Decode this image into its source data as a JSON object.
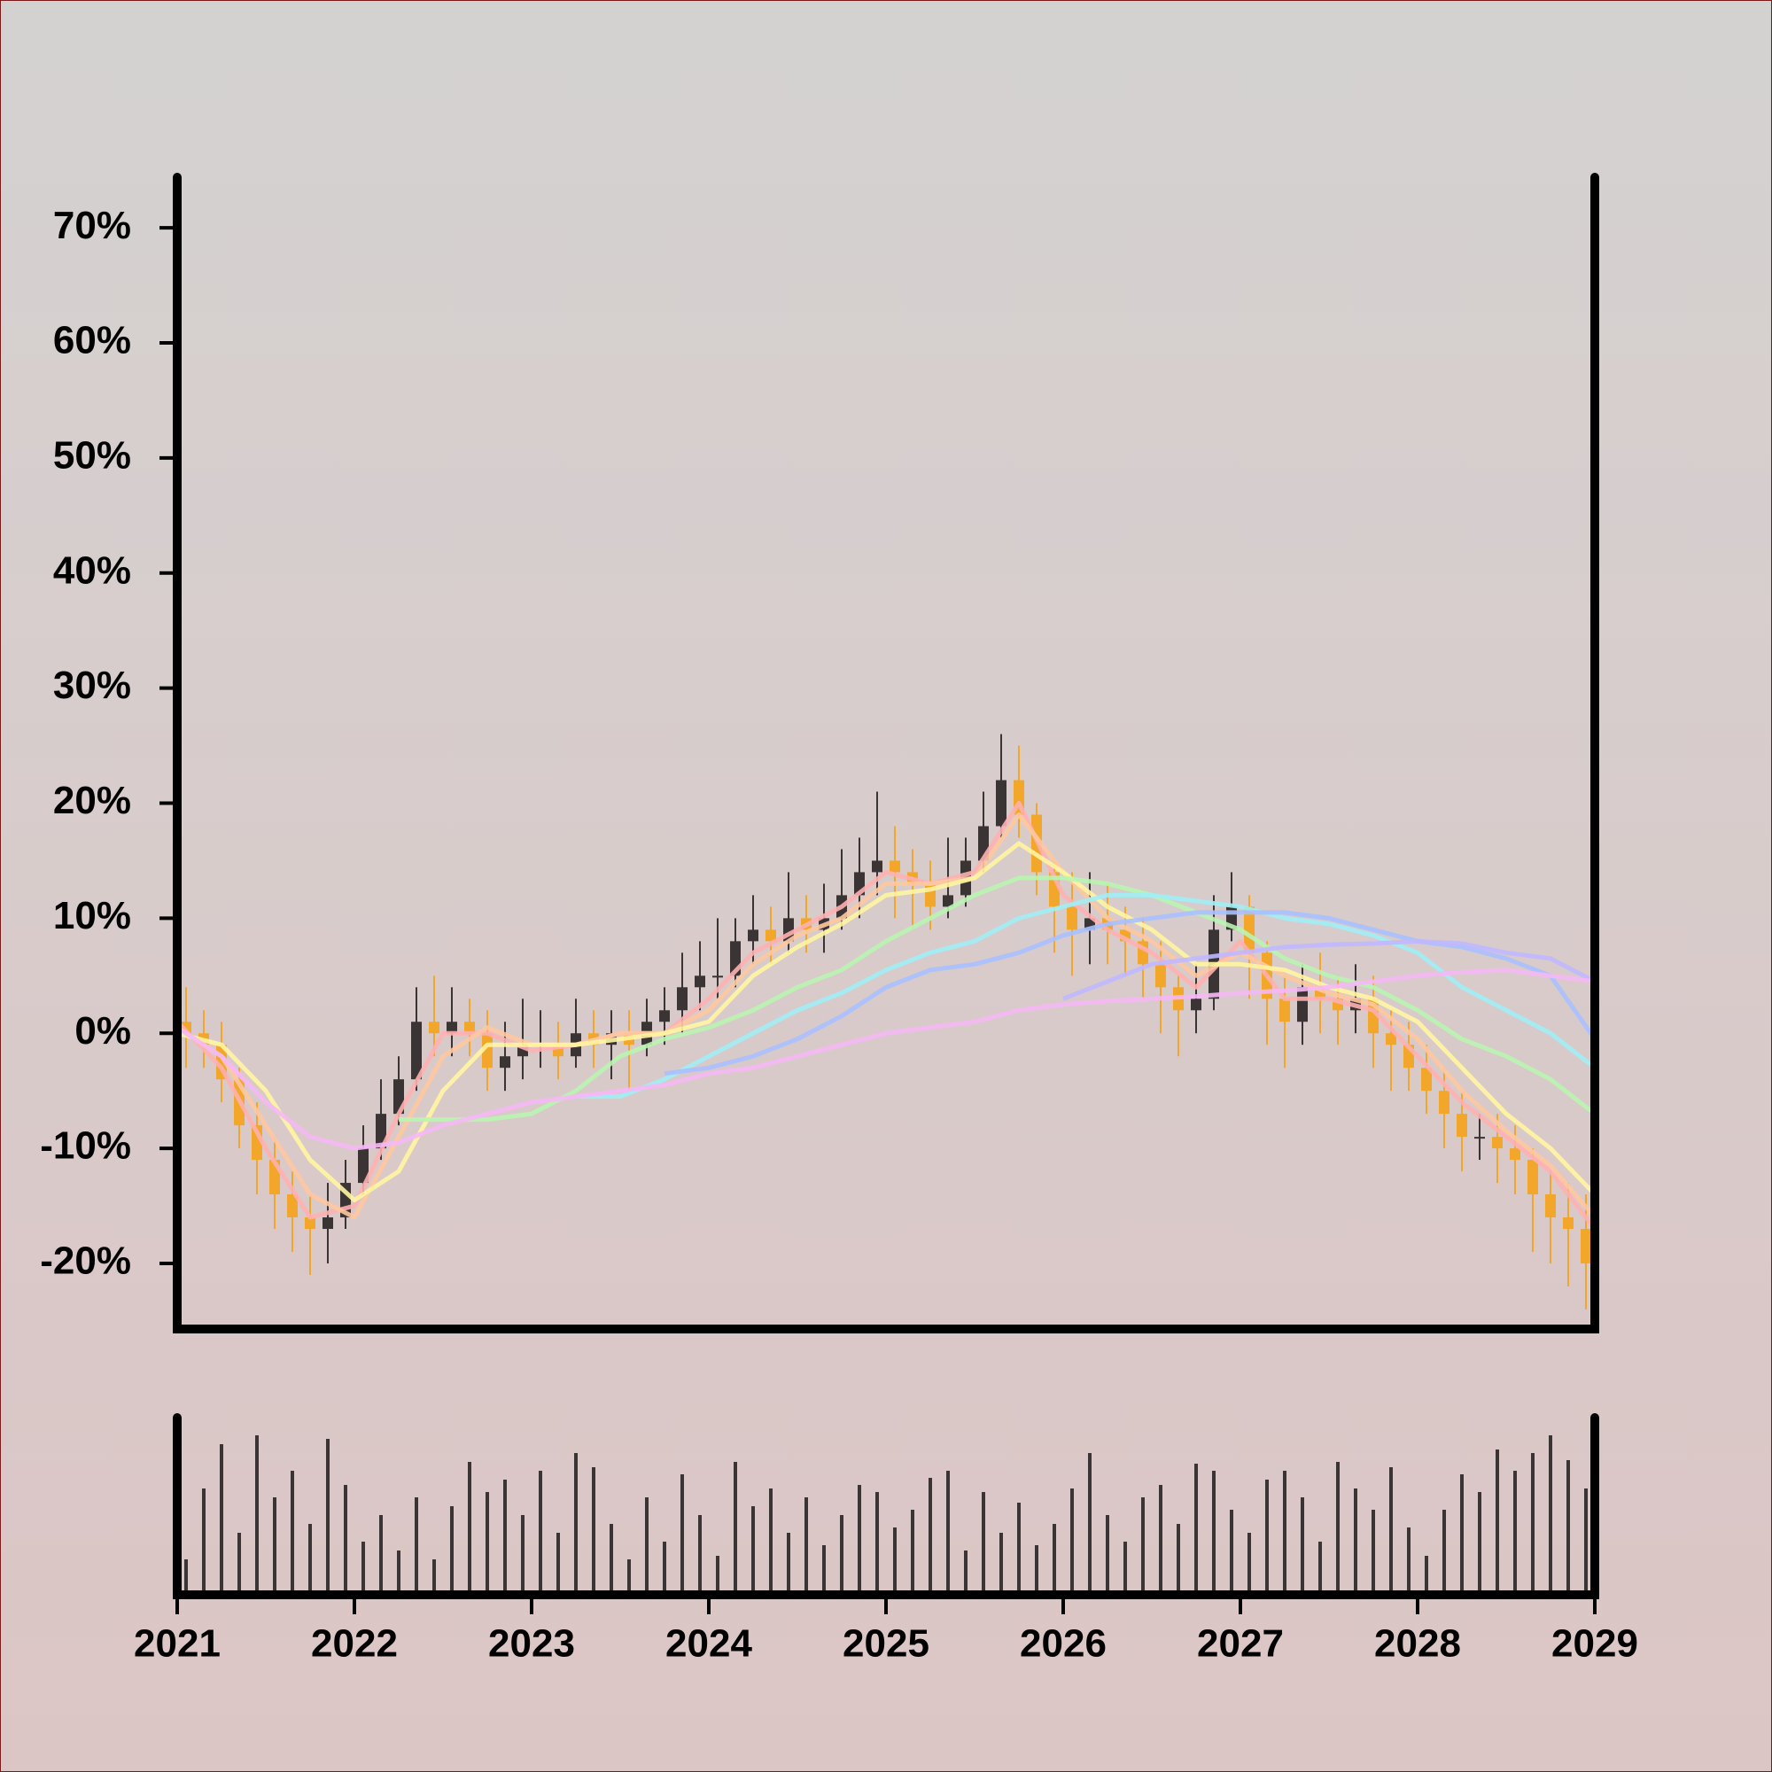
{
  "chart_data": {
    "type": "candlestick",
    "xlim": [
      2021,
      2029
    ],
    "xticks": [
      2021,
      2022,
      2023,
      2024,
      2025,
      2026,
      2027,
      2028,
      2029
    ],
    "ylim": [
      -25.7,
      74.4
    ],
    "yticks": [
      {
        "value": -20,
        "label": "-20%"
      },
      {
        "value": -10,
        "label": "-10%"
      },
      {
        "value": 0,
        "label": "0%"
      },
      {
        "value": 10,
        "label": "10%"
      },
      {
        "value": 20,
        "label": "20%"
      },
      {
        "value": 30,
        "label": "30%"
      },
      {
        "value": 40,
        "label": "40%"
      },
      {
        "value": 50,
        "label": "50%"
      },
      {
        "value": 60,
        "label": "60%"
      },
      {
        "value": 70,
        "label": "70%"
      }
    ],
    "up_color": "#3a3434",
    "down_color": "#f2a62a",
    "volume_color": "#3a3434",
    "volume_lim": [
      0,
      100
    ],
    "candles": {
      "x": [
        2021.05,
        2021.15,
        2021.25,
        2021.35,
        2021.45,
        2021.55,
        2021.65,
        2021.75,
        2021.85,
        2021.95,
        2022.05,
        2022.15,
        2022.25,
        2022.35,
        2022.45,
        2022.55,
        2022.65,
        2022.75,
        2022.85,
        2022.95,
        2023.05,
        2023.15,
        2023.25,
        2023.35,
        2023.45,
        2023.55,
        2023.65,
        2023.75,
        2023.85,
        2023.95,
        2024.05,
        2024.15,
        2024.25,
        2024.35,
        2024.45,
        2024.55,
        2024.65,
        2024.75,
        2024.85,
        2024.95,
        2025.05,
        2025.15,
        2025.25,
        2025.35,
        2025.45,
        2025.55,
        2025.65,
        2025.75,
        2025.85,
        2025.95,
        2026.05,
        2026.15,
        2026.25,
        2026.35,
        2026.45,
        2026.55,
        2026.65,
        2026.75,
        2026.85,
        2026.95,
        2027.05,
        2027.15,
        2027.25,
        2027.35,
        2027.45,
        2027.55,
        2027.65,
        2027.75,
        2027.85,
        2027.95,
        2028.05,
        2028.15,
        2028.25,
        2028.35,
        2028.45,
        2028.55,
        2028.65,
        2028.75,
        2028.85,
        2028.95
      ],
      "open": [
        1,
        0,
        -1,
        -4,
        -8,
        -11,
        -14,
        -16,
        -17,
        -16,
        -13,
        -10,
        -7,
        -4,
        1,
        0,
        1,
        0,
        -3,
        -2,
        -1,
        -1,
        -2,
        0,
        -1,
        0,
        -1,
        1,
        2,
        4,
        5,
        5,
        8,
        9,
        8,
        10,
        9,
        10,
        12,
        14,
        15,
        14,
        13,
        11,
        12,
        15,
        18,
        22,
        19,
        14,
        11,
        9,
        10,
        9,
        8,
        6,
        4,
        2,
        3,
        9,
        11,
        7,
        3,
        1,
        4,
        3,
        2,
        3,
        0,
        -1,
        -3,
        -5,
        -7,
        -9,
        -9,
        -10,
        -11,
        -14,
        -16,
        -17
      ],
      "high": [
        4,
        2,
        1,
        -3,
        -6,
        -9,
        -12,
        -14,
        -13,
        -11,
        -8,
        -4,
        -2,
        4,
        5,
        4,
        3,
        2,
        1,
        3,
        2,
        1,
        3,
        2,
        2,
        2,
        3,
        4,
        7,
        8,
        10,
        10,
        12,
        11,
        14,
        12,
        13,
        16,
        17,
        21,
        18,
        16,
        15,
        17,
        17,
        21,
        26,
        25,
        20,
        15,
        14,
        14,
        13,
        11,
        10,
        8,
        5,
        6,
        12,
        14,
        12,
        8,
        5,
        6,
        7,
        5,
        6,
        5,
        2,
        1,
        -1,
        -3,
        -5,
        -7,
        -7,
        -8,
        -10,
        -12,
        -13,
        -14
      ],
      "low": [
        -3,
        -3,
        -6,
        -10,
        -14,
        -17,
        -19,
        -21,
        -20,
        -17,
        -14,
        -11,
        -8,
        -5,
        -2,
        -2,
        -2,
        -5,
        -5,
        -4,
        -3,
        -4,
        -3,
        -3,
        -4,
        -5,
        -2,
        -1,
        0,
        2,
        3,
        4,
        6,
        6,
        7,
        7,
        7,
        9,
        10,
        12,
        10,
        9,
        9,
        10,
        11,
        14,
        17,
        17,
        12,
        7,
        5,
        6,
        6,
        5,
        3,
        0,
        -2,
        0,
        2,
        8,
        3,
        -1,
        -3,
        -1,
        0,
        -1,
        0,
        -3,
        -5,
        -5,
        -7,
        -10,
        -12,
        -11,
        -13,
        -14,
        -19,
        -20,
        -22,
        -24
      ],
      "close": [
        0,
        -1,
        -4,
        -8,
        -11,
        -14,
        -16,
        -17,
        -16,
        -13,
        -10,
        -7,
        -4,
        1,
        0,
        1,
        0,
        -3,
        -2,
        -1,
        -1,
        -2,
        0,
        -1,
        0,
        -1,
        1,
        2,
        4,
        5,
        5,
        8,
        9,
        8,
        10,
        9,
        10,
        12,
        14,
        15,
        14,
        13,
        11,
        12,
        15,
        18,
        22,
        19,
        14,
        11,
        9,
        10,
        9,
        8,
        6,
        4,
        2,
        3,
        9,
        11,
        7,
        3,
        1,
        4,
        3,
        2,
        3,
        0,
        -1,
        -3,
        -5,
        -7,
        -9,
        -9,
        -10,
        -11,
        -14,
        -16,
        -17,
        -20
      ],
      "volume": [
        20,
        60,
        85,
        35,
        90,
        55,
        70,
        40,
        88,
        62,
        30,
        45,
        25,
        55,
        20,
        50,
        75,
        58,
        65,
        45,
        70,
        35,
        80,
        72,
        40,
        20,
        55,
        30,
        68,
        45,
        22,
        75,
        50,
        60,
        35,
        55,
        28,
        45,
        62,
        58,
        38,
        48,
        66,
        70,
        25,
        58,
        35,
        52,
        28,
        40,
        60,
        80,
        45,
        30,
        55,
        62,
        40,
        74,
        70,
        48,
        35,
        65,
        70,
        55,
        30,
        75,
        60,
        48,
        72,
        38,
        22,
        48,
        68,
        58,
        82,
        70,
        80,
        90,
        76,
        60
      ]
    },
    "x": [
      2021,
      2021.25,
      2021.5,
      2021.75,
      2022,
      2022.25,
      2022.5,
      2022.75,
      2023,
      2023.25,
      2023.5,
      2023.75,
      2024,
      2024.25,
      2024.5,
      2024.75,
      2025,
      2025.25,
      2025.5,
      2025.75,
      2026,
      2026.25,
      2026.5,
      2026.75,
      2027,
      2027.25,
      2027.5,
      2027.75,
      2028,
      2028.25,
      2028.5,
      2028.75,
      2029
    ],
    "series": [
      {
        "color": "#ffb0b0",
        "values": [
          1,
          -3,
          -10,
          -16,
          -15,
          -7,
          0,
          0,
          -1.5,
          -1,
          0,
          0,
          3,
          7,
          9,
          11,
          14,
          13,
          14,
          20,
          12,
          9,
          7,
          4,
          8,
          3,
          3,
          2,
          -2,
          -6,
          -9,
          -12,
          -17
        ]
      },
      {
        "color": "#ffc8a0",
        "values": [
          0.5,
          -2,
          -8,
          -14,
          -16,
          -9,
          -2,
          0.5,
          -1,
          -1,
          0,
          0,
          2,
          6,
          8.5,
          10,
          13,
          13,
          13.5,
          19,
          14,
          10,
          8,
          5,
          7,
          5,
          3.5,
          2.5,
          -0.5,
          -5,
          -8.5,
          -11.5,
          -16
        ]
      },
      {
        "color": "#fff5a0",
        "values": [
          0,
          -1,
          -5,
          -11,
          -14.5,
          -12,
          -5,
          -1,
          -1,
          -1,
          -0.5,
          0,
          1,
          5,
          7.5,
          9.5,
          12,
          12.5,
          13.5,
          16.5,
          14,
          11,
          9,
          6,
          6,
          5.5,
          4,
          3,
          1,
          -3,
          -7,
          -10,
          -14
        ]
      },
      {
        "color": "#b8f5b0",
        "values": [
          null,
          null,
          null,
          null,
          null,
          -7.5,
          -7.5,
          -7.5,
          -7,
          -5,
          -2,
          -0.5,
          0.5,
          2,
          4,
          5.5,
          8,
          10,
          12,
          13.5,
          13.5,
          13,
          12,
          10.5,
          9,
          6.5,
          5,
          4,
          2,
          -0.5,
          -2,
          -4,
          -7
        ]
      },
      {
        "color": "#a0eef5",
        "values": [
          null,
          null,
          null,
          null,
          null,
          null,
          null,
          null,
          null,
          -5.5,
          -5.5,
          -4,
          -2,
          0,
          2,
          3.5,
          5.5,
          7,
          8,
          10,
          11,
          12,
          12,
          11.5,
          11,
          10,
          9.5,
          8.5,
          7,
          4,
          2,
          0,
          -3
        ]
      },
      {
        "color": "#a8c0ff",
        "values": [
          null,
          null,
          null,
          null,
          null,
          null,
          null,
          null,
          null,
          null,
          null,
          -3.5,
          -3,
          -2,
          -0.5,
          1.5,
          4,
          5.5,
          6,
          7,
          8.5,
          9.5,
          10,
          10.5,
          10.5,
          10.5,
          10,
          9,
          8,
          7.5,
          6.5,
          5,
          -0.5
        ]
      },
      {
        "color": "#c0b8ff",
        "values": [
          null,
          null,
          null,
          null,
          null,
          null,
          null,
          null,
          null,
          null,
          null,
          null,
          null,
          null,
          null,
          null,
          null,
          null,
          null,
          null,
          3,
          4.5,
          6,
          6.5,
          7,
          7.5,
          7.7,
          7.8,
          8,
          7.8,
          7,
          6.5,
          4.5
        ]
      },
      {
        "color": "#f5b8f5",
        "values": [
          0.5,
          -2,
          -6,
          -9,
          -10,
          -9.5,
          -8,
          -7,
          -6,
          -5.5,
          -5,
          -4.5,
          -3.5,
          -3,
          -2,
          -1,
          0,
          0.5,
          1,
          2,
          2.5,
          2.8,
          3,
          3.2,
          3.5,
          3.7,
          4,
          4.5,
          5,
          5.3,
          5.5,
          5,
          4.5
        ]
      }
    ]
  }
}
